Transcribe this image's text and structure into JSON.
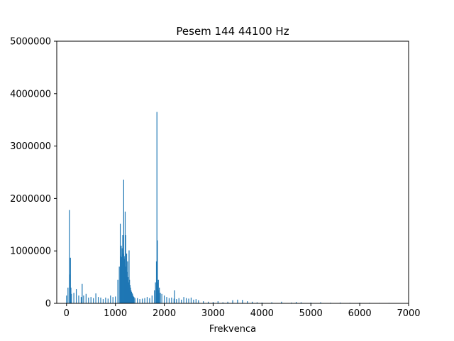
{
  "chart_data": {
    "type": "bar",
    "title": "Pesem 144 44100 Hz",
    "xlabel": "Frekvenca",
    "ylabel": "",
    "xlim": [
      -200,
      7000
    ],
    "ylim": [
      0,
      5000000
    ],
    "xticks": [
      "0",
      "1000",
      "2000",
      "3000",
      "4000",
      "5000",
      "6000",
      "7000"
    ],
    "yticks": [
      "0",
      "1000000",
      "2000000",
      "3000000",
      "4000000",
      "5000000"
    ],
    "grid": false,
    "bar_color": "#1f77b4",
    "x": [
      0,
      30,
      60,
      70,
      80,
      90,
      100,
      150,
      200,
      250,
      300,
      320,
      350,
      400,
      450,
      500,
      550,
      600,
      650,
      700,
      750,
      800,
      850,
      900,
      950,
      1000,
      1050,
      1080,
      1100,
      1110,
      1120,
      1130,
      1140,
      1150,
      1160,
      1170,
      1180,
      1190,
      1200,
      1210,
      1220,
      1230,
      1240,
      1250,
      1260,
      1270,
      1280,
      1290,
      1300,
      1310,
      1320,
      1330,
      1340,
      1350,
      1360,
      1370,
      1380,
      1400,
      1450,
      1500,
      1550,
      1600,
      1650,
      1700,
      1750,
      1800,
      1820,
      1840,
      1850,
      1860,
      1870,
      1875,
      1880,
      1890,
      1900,
      1920,
      1950,
      2000,
      2050,
      2100,
      2150,
      2200,
      2210,
      2250,
      2300,
      2350,
      2400,
      2450,
      2500,
      2550,
      2600,
      2650,
      2700,
      2800,
      2900,
      3000,
      3100,
      3200,
      3300,
      3400,
      3500,
      3600,
      3700,
      3800,
      3900,
      4000,
      4200,
      4400,
      4600,
      4700,
      4800,
      5000,
      5200,
      5400,
      5600,
      5800,
      6000,
      6200,
      6400,
      6600
    ],
    "values": [
      150000,
      300000,
      1780000,
      550000,
      870000,
      300000,
      180000,
      200000,
      270000,
      150000,
      120000,
      370000,
      150000,
      180000,
      110000,
      120000,
      100000,
      190000,
      120000,
      110000,
      80000,
      110000,
      90000,
      150000,
      120000,
      130000,
      450000,
      700000,
      1520000,
      900000,
      1100000,
      880000,
      1050000,
      1300000,
      950000,
      2360000,
      850000,
      900000,
      1750000,
      1300000,
      700000,
      950000,
      600000,
      800000,
      500000,
      400000,
      1010000,
      450000,
      350000,
      300000,
      250000,
      220000,
      200000,
      180000,
      150000,
      130000,
      120000,
      100000,
      100000,
      80000,
      90000,
      100000,
      120000,
      100000,
      150000,
      250000,
      400000,
      800000,
      3650000,
      1200000,
      400000,
      300000,
      450000,
      250000,
      300000,
      200000,
      180000,
      150000,
      120000,
      100000,
      110000,
      90000,
      250000,
      80000,
      100000,
      70000,
      120000,
      100000,
      90000,
      110000,
      70000,
      80000,
      60000,
      40000,
      30000,
      25000,
      40000,
      20000,
      30000,
      60000,
      70000,
      65000,
      40000,
      30000,
      20000,
      15000,
      20000,
      30000,
      15000,
      25000,
      20000,
      15000,
      20000,
      12000,
      15000,
      10000,
      12000,
      10000,
      8000,
      9000
    ]
  }
}
